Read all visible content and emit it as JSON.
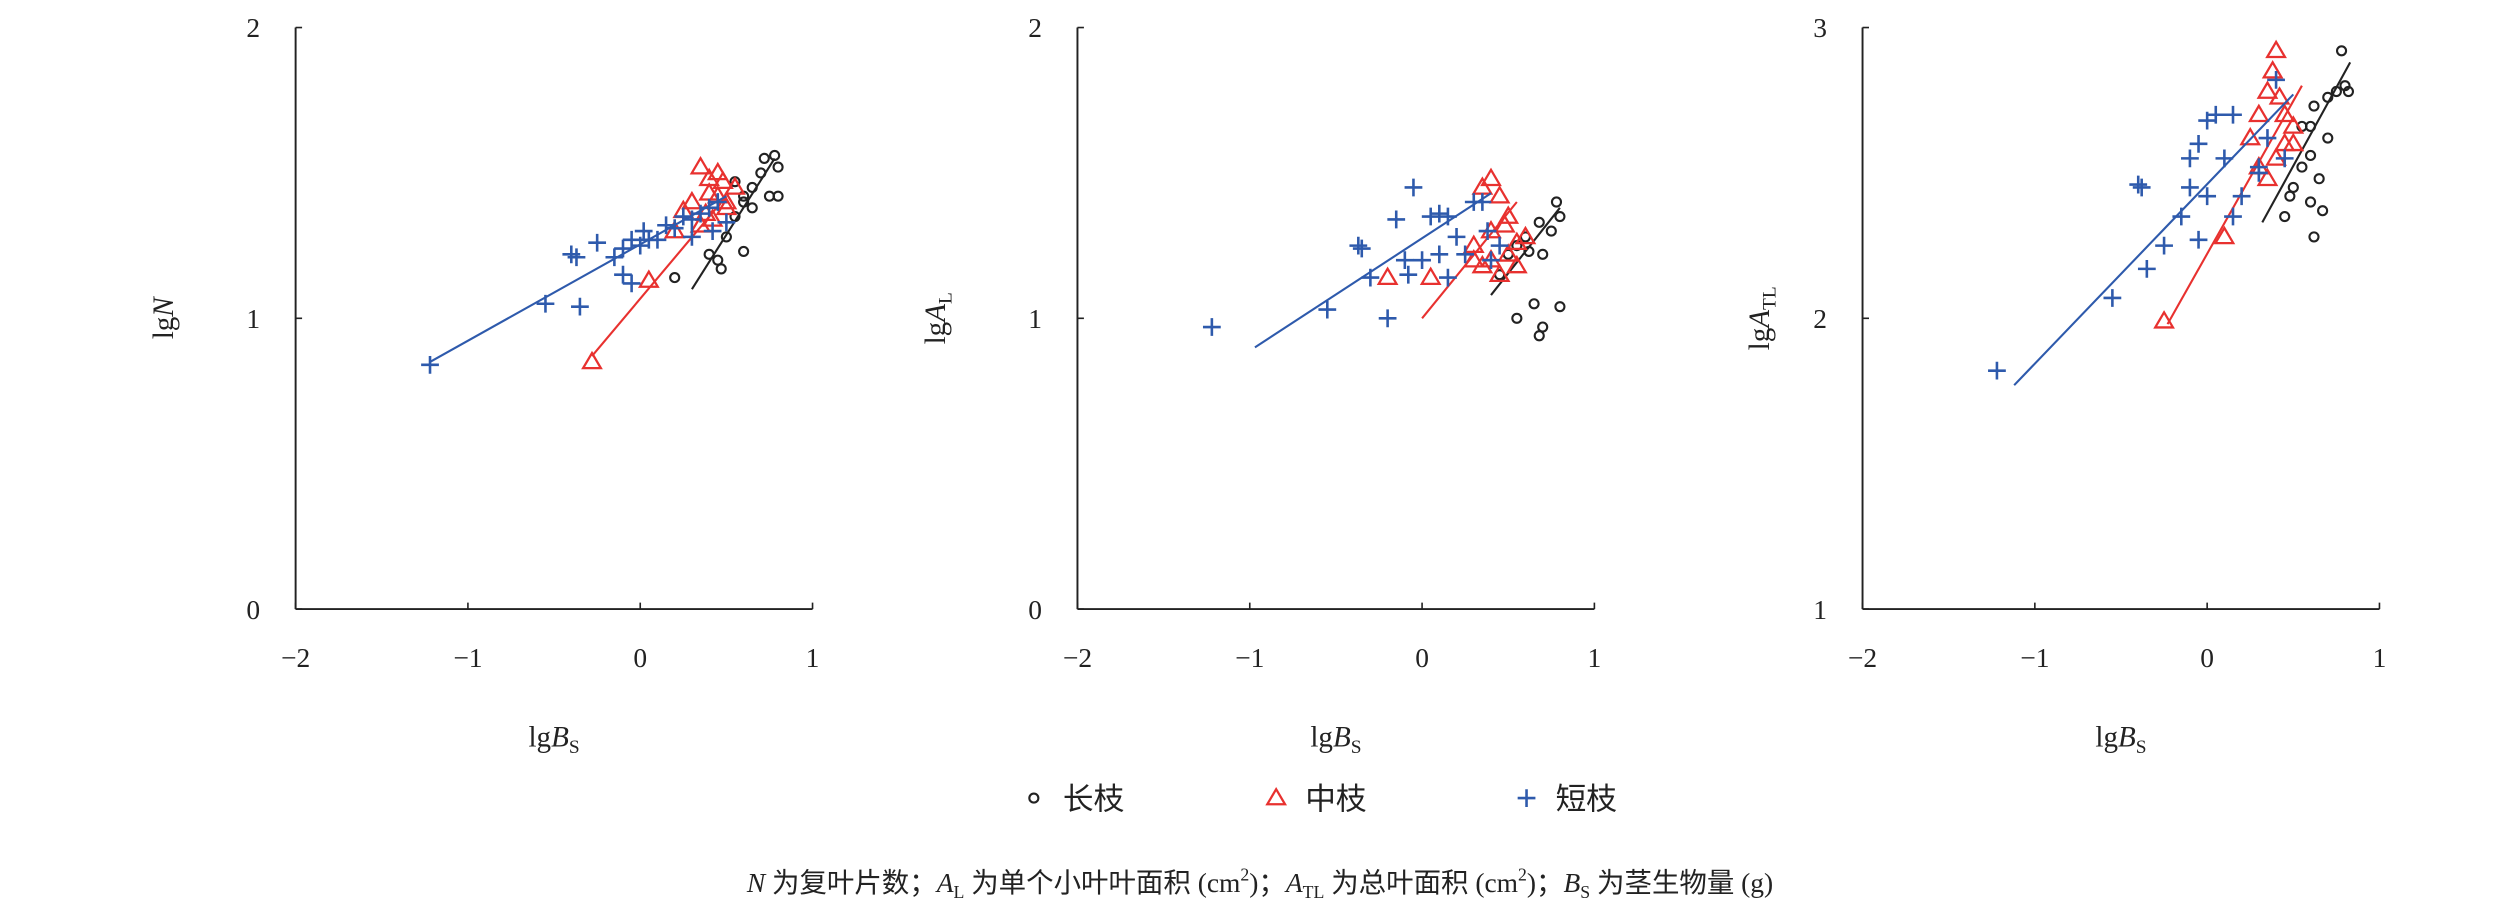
{
  "colors": {
    "long": "#222222",
    "mid": "#e8312f",
    "short": "#2e5aac",
    "axis": "#222222"
  },
  "legend": [
    {
      "key": "long",
      "label": "长枝",
      "marker": "circle"
    },
    {
      "key": "mid",
      "label": "中枝",
      "marker": "triangle"
    },
    {
      "key": "short",
      "label": "短枝",
      "marker": "plus"
    }
  ],
  "caption": [
    {
      "text": "N",
      "italic": true
    },
    {
      "text": " 为复叶片数；"
    },
    {
      "text": "A",
      "italic": true
    },
    {
      "text": "L",
      "sub": true
    },
    {
      "text": " 为单个小叶叶面积 (cm"
    },
    {
      "text": "2",
      "sup": true
    },
    {
      "text": ")；"
    },
    {
      "text": "A",
      "italic": true
    },
    {
      "text": "TL",
      "sub": true
    },
    {
      "text": " 为总叶面积 (cm"
    },
    {
      "text": "2",
      "sup": true
    },
    {
      "text": ")；"
    },
    {
      "text": "B",
      "italic": true
    },
    {
      "text": "S",
      "sub": true
    },
    {
      "text": " 为茎生物量 (g)"
    }
  ],
  "chart_data": [
    {
      "type": "scatter",
      "xlabel": {
        "prefix": "lg",
        "var": "B",
        "sub": "S"
      },
      "ylabel": {
        "prefix": "lg",
        "var": "N",
        "sub": ""
      },
      "xlim": [
        -2,
        1
      ],
      "ylim": [
        0,
        2
      ],
      "xticks": [
        "−2",
        "−1",
        "0",
        "1"
      ],
      "xtick_values": [
        -2,
        -1,
        0,
        1
      ],
      "yticks": [
        "0",
        "1",
        "2"
      ],
      "ytick_values": [
        0,
        1,
        2
      ],
      "grid": false,
      "series": {
        "short": {
          "points": [
            [
              -1.22,
              0.84
            ],
            [
              -0.55,
              1.05
            ],
            [
              -0.35,
              1.04
            ],
            [
              -0.4,
              1.22
            ],
            [
              -0.37,
              1.21
            ],
            [
              -0.25,
              1.26
            ],
            [
              -0.15,
              1.21
            ],
            [
              -0.1,
              1.15
            ],
            [
              -0.05,
              1.12
            ],
            [
              -0.1,
              1.24
            ],
            [
              0,
              1.25
            ],
            [
              0.02,
              1.3
            ],
            [
              0.05,
              1.27
            ],
            [
              0.1,
              1.27
            ],
            [
              0.15,
              1.32
            ],
            [
              0.2,
              1.31
            ],
            [
              0.25,
              1.35
            ],
            [
              0.3,
              1.34
            ],
            [
              0.35,
              1.36
            ],
            [
              0.4,
              1.38
            ],
            [
              0.45,
              1.4
            ],
            [
              0.3,
              1.28
            ],
            [
              0.42,
              1.3
            ],
            [
              0.5,
              1.33
            ],
            [
              -0.05,
              1.27
            ]
          ],
          "fit": [
            [
              -1.22,
              0.85
            ],
            [
              0.5,
              1.42
            ]
          ]
        },
        "mid": {
          "points": [
            [
              -0.28,
              0.85
            ],
            [
              0.05,
              1.13
            ],
            [
              0.25,
              1.37
            ],
            [
              0.35,
              1.52
            ],
            [
              0.4,
              1.48
            ],
            [
              0.45,
              1.5
            ],
            [
              0.48,
              1.47
            ],
            [
              0.3,
              1.4
            ],
            [
              0.4,
              1.43
            ],
            [
              0.45,
              1.42
            ],
            [
              0.5,
              1.4
            ],
            [
              0.55,
              1.45
            ],
            [
              0.35,
              1.32
            ],
            [
              0.42,
              1.34
            ],
            [
              0.5,
              1.38
            ],
            [
              0.38,
              1.36
            ],
            [
              0.2,
              1.3
            ]
          ],
          "fit": [
            [
              -0.28,
              0.87
            ],
            [
              0.5,
              1.42
            ]
          ]
        },
        "long": {
          "points": [
            [
              0.2,
              1.14
            ],
            [
              0.4,
              1.22
            ],
            [
              0.45,
              1.2
            ],
            [
              0.47,
              1.17
            ],
            [
              0.6,
              1.23
            ],
            [
              0.5,
              1.28
            ],
            [
              0.55,
              1.35
            ],
            [
              0.6,
              1.42
            ],
            [
              0.65,
              1.45
            ],
            [
              0.7,
              1.5
            ],
            [
              0.72,
              1.55
            ],
            [
              0.78,
              1.56
            ],
            [
              0.8,
              1.52
            ],
            [
              0.75,
              1.42
            ],
            [
              0.8,
              1.42
            ],
            [
              0.6,
              1.4
            ],
            [
              0.65,
              1.38
            ],
            [
              0.55,
              1.47
            ]
          ],
          "fit": [
            [
              0.3,
              1.1
            ],
            [
              0.78,
              1.55
            ]
          ]
        }
      }
    },
    {
      "type": "scatter",
      "xlabel": {
        "prefix": "lg",
        "var": "B",
        "sub": "S"
      },
      "ylabel": {
        "prefix": "lg",
        "var": "A",
        "sub": "L"
      },
      "xlim": [
        -2,
        1
      ],
      "ylim": [
        0,
        2
      ],
      "xticks": [
        "−2",
        "−1",
        "0",
        "1"
      ],
      "xtick_values": [
        -2,
        -1,
        0,
        1
      ],
      "yticks": [
        "0",
        "1",
        "2"
      ],
      "ytick_values": [
        0,
        1,
        2
      ],
      "grid": false,
      "series": {
        "short": {
          "points": [
            [
              -1.22,
              0.97
            ],
            [
              -0.55,
              1.03
            ],
            [
              -0.35,
              1.24
            ],
            [
              -0.37,
              1.25
            ],
            [
              -0.2,
              1.0
            ],
            [
              -0.1,
              1.2
            ],
            [
              -0.15,
              1.34
            ],
            [
              -0.05,
              1.45
            ],
            [
              -0.08,
              1.15
            ],
            [
              0,
              1.2
            ],
            [
              0.05,
              1.35
            ],
            [
              0.1,
              1.36
            ],
            [
              0.15,
              1.35
            ],
            [
              0.2,
              1.28
            ],
            [
              0.25,
              1.22
            ],
            [
              0.3,
              1.4
            ],
            [
              0.35,
              1.4
            ],
            [
              0.4,
              1.2
            ],
            [
              0.45,
              1.25
            ],
            [
              0.15,
              1.14
            ],
            [
              -0.3,
              1.14
            ],
            [
              0.1,
              1.22
            ],
            [
              0.38,
              1.3
            ]
          ],
          "fit": [
            [
              -0.97,
              0.9
            ],
            [
              0.4,
              1.43
            ]
          ]
        },
        "mid": {
          "points": [
            [
              -0.2,
              1.14
            ],
            [
              0.05,
              1.14
            ],
            [
              0.35,
              1.45
            ],
            [
              0.4,
              1.48
            ],
            [
              0.45,
              1.42
            ],
            [
              0.5,
              1.35
            ],
            [
              0.4,
              1.3
            ],
            [
              0.3,
              1.25
            ],
            [
              0.35,
              1.18
            ],
            [
              0.45,
              1.15
            ],
            [
              0.5,
              1.22
            ],
            [
              0.55,
              1.26
            ],
            [
              0.4,
              1.2
            ],
            [
              0.48,
              1.32
            ],
            [
              0.6,
              1.28
            ],
            [
              0.3,
              1.2
            ],
            [
              0.55,
              1.18
            ]
          ],
          "fit": [
            [
              0,
              1.0
            ],
            [
              0.55,
              1.4
            ]
          ]
        },
        "long": {
          "points": [
            [
              0.55,
              1.25
            ],
            [
              0.6,
              1.28
            ],
            [
              0.62,
              1.23
            ],
            [
              0.7,
              1.22
            ],
            [
              0.75,
              1.3
            ],
            [
              0.8,
              1.35
            ],
            [
              0.78,
              1.4
            ],
            [
              0.68,
              1.33
            ],
            [
              0.55,
              1.0
            ],
            [
              0.65,
              1.05
            ],
            [
              0.7,
              0.97
            ],
            [
              0.68,
              0.94
            ],
            [
              0.8,
              1.04
            ],
            [
              0.5,
              1.22
            ],
            [
              0.45,
              1.15
            ]
          ],
          "fit": [
            [
              0.4,
              1.08
            ],
            [
              0.8,
              1.38
            ]
          ]
        }
      }
    },
    {
      "type": "scatter",
      "xlabel": {
        "prefix": "lg",
        "var": "B",
        "sub": "S"
      },
      "ylabel": {
        "prefix": "lg",
        "var": "A",
        "sub": "TL"
      },
      "xlim": [
        -2,
        1
      ],
      "ylim": [
        1,
        3
      ],
      "xticks": [
        "−2",
        "−1",
        "0",
        "1"
      ],
      "xtick_values": [
        -2,
        -1,
        0,
        1
      ],
      "yticks": [
        "1",
        "2",
        "3"
      ],
      "ytick_values": [
        1,
        2,
        3
      ],
      "grid": false,
      "series": {
        "short": {
          "points": [
            [
              -1.22,
              1.82
            ],
            [
              -0.55,
              2.07
            ],
            [
              -0.35,
              2.17
            ],
            [
              -0.4,
              2.46
            ],
            [
              -0.38,
              2.45
            ],
            [
              -0.25,
              2.25
            ],
            [
              -0.15,
              2.35
            ],
            [
              -0.1,
              2.45
            ],
            [
              -0.05,
              2.6
            ],
            [
              -0.1,
              2.55
            ],
            [
              0,
              2.42
            ],
            [
              -0.05,
              2.27
            ],
            [
              0.05,
              2.7
            ],
            [
              0,
              2.68
            ],
            [
              0.1,
              2.55
            ],
            [
              0.15,
              2.7
            ],
            [
              0.15,
              2.35
            ],
            [
              0.2,
              2.42
            ],
            [
              0.3,
              2.5
            ],
            [
              0.35,
              2.62
            ],
            [
              0.4,
              2.82
            ],
            [
              0.3,
              2.52
            ],
            [
              0.45,
              2.55
            ]
          ],
          "fit": [
            [
              -1.12,
              1.77
            ],
            [
              0.5,
              2.77
            ]
          ]
        },
        "mid": {
          "points": [
            [
              -0.25,
              1.99
            ],
            [
              0.1,
              2.28
            ],
            [
              0.4,
              2.92
            ],
            [
              0.38,
              2.85
            ],
            [
              0.35,
              2.78
            ],
            [
              0.3,
              2.7
            ],
            [
              0.25,
              2.62
            ],
            [
              0.45,
              2.7
            ],
            [
              0.5,
              2.66
            ],
            [
              0.45,
              2.6
            ],
            [
              0.4,
              2.55
            ],
            [
              0.3,
              2.52
            ],
            [
              0.35,
              2.48
            ],
            [
              0.5,
              2.6
            ],
            [
              0.42,
              2.76
            ]
          ],
          "fit": [
            [
              -0.23,
              1.98
            ],
            [
              0.55,
              2.8
            ]
          ]
        },
        "long": {
          "points": [
            [
              0.5,
              2.45
            ],
            [
              0.55,
              2.52
            ],
            [
              0.6,
              2.56
            ],
            [
              0.6,
              2.66
            ],
            [
              0.62,
              2.73
            ],
            [
              0.7,
              2.76
            ],
            [
              0.75,
              2.78
            ],
            [
              0.8,
              2.8
            ],
            [
              0.82,
              2.78
            ],
            [
              0.78,
              2.92
            ],
            [
              0.7,
              2.62
            ],
            [
              0.65,
              2.48
            ],
            [
              0.67,
              2.37
            ],
            [
              0.62,
              2.28
            ],
            [
              0.45,
              2.35
            ],
            [
              0.55,
              2.66
            ],
            [
              0.6,
              2.4
            ],
            [
              0.48,
              2.42
            ]
          ],
          "fit": [
            [
              0.32,
              2.33
            ],
            [
              0.83,
              2.88
            ]
          ]
        }
      }
    }
  ]
}
